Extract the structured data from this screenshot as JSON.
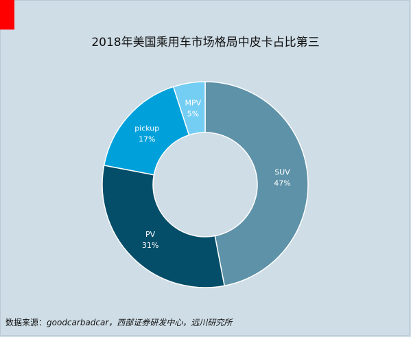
{
  "chart_data": {
    "type": "pie",
    "donut": true,
    "title": "2018年美国乘用车市场格局中皮卡占比第三",
    "slices": [
      {
        "label": "SUV",
        "value": 47,
        "value_label": "47%",
        "color": "#5e92a8"
      },
      {
        "label": "PV",
        "value": 31,
        "value_label": "31%",
        "color": "#054e69"
      },
      {
        "label": "pickup",
        "value": 17,
        "value_label": "17%",
        "color": "#00a1db"
      },
      {
        "label": "MPV",
        "value": 5,
        "value_label": "5%",
        "color": "#74cdf3"
      }
    ]
  },
  "source": {
    "label": "数据来源：",
    "text": "goodcarbadcar，西部证券研发中心，远川研究所"
  },
  "colors": {
    "background": "#cfdde6",
    "marker": "#ff0000"
  }
}
